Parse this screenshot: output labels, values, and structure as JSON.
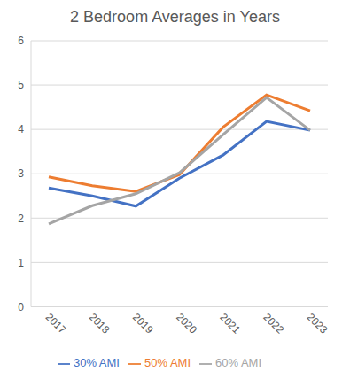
{
  "chart_data": {
    "type": "line",
    "title": "2 Bedroom Averages in Years",
    "categories": [
      "2017",
      "2018",
      "2019",
      "2020",
      "2021",
      "2022",
      "2023"
    ],
    "series": [
      {
        "name": "30% AMI",
        "color": "#4472c4",
        "values": [
          2.68,
          2.5,
          2.27,
          2.9,
          3.42,
          4.18,
          3.98
        ]
      },
      {
        "name": "50% AMI",
        "color": "#ed7d31",
        "values": [
          2.93,
          2.73,
          2.6,
          2.98,
          4.05,
          4.78,
          4.42
        ]
      },
      {
        "name": "60% AMI",
        "color": "#a5a5a5",
        "values": [
          1.87,
          2.28,
          2.55,
          3.02,
          3.88,
          4.72,
          3.98
        ]
      }
    ],
    "ylim": [
      0,
      6
    ],
    "yticks": [
      0,
      1,
      2,
      3,
      4,
      5,
      6
    ],
    "grid": true,
    "legend": "bottom",
    "marker": "none",
    "line_style": "solid"
  }
}
